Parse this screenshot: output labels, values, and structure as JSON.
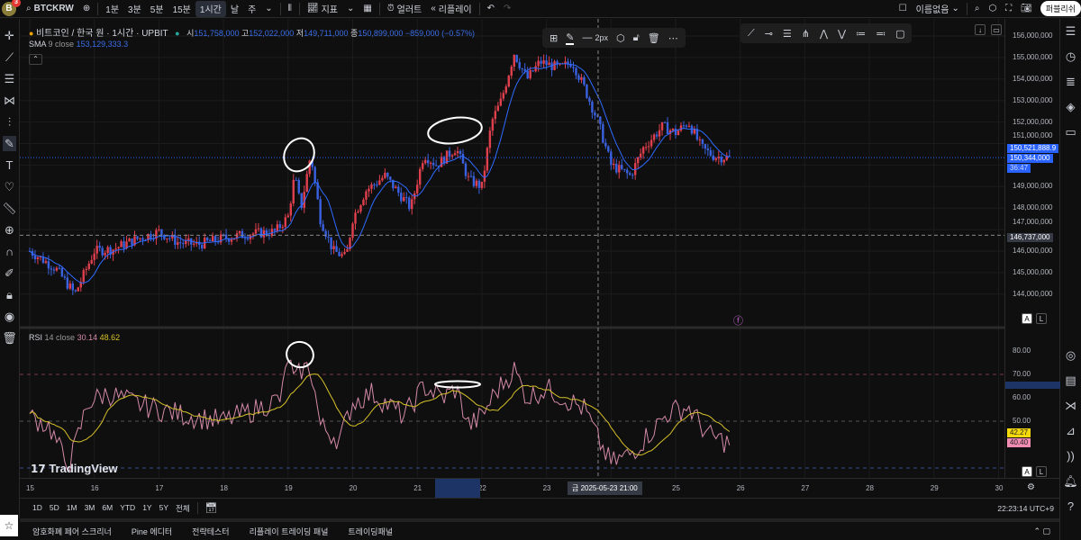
{
  "topbar": {
    "avatar": "B",
    "badge": "3",
    "symbol": "BTCKRW",
    "intervals": [
      "1분",
      "3분",
      "5분",
      "15분",
      "1시간",
      "날",
      "주"
    ],
    "active_interval": "1시간",
    "indicators": "지표",
    "alert": "얼러트",
    "replay": "리플레이",
    "layout_name": "이름없음",
    "publish": "퍼블리쉬"
  },
  "legend": {
    "title": "비트코인 / 한국 원 · 1시간 · UPBIT",
    "o_label": "시",
    "o": "151,758,000",
    "h_label": "고",
    "h": "152,022,000",
    "l_label": "저",
    "l": "149,711,000",
    "c_label": "종",
    "c": "150,899,000",
    "change": "−859,000 (−0.57%)",
    "sma_label": "SMA",
    "sma_params": "9 close",
    "sma_value": "153,129,333.3",
    "rsi_label": "RSI",
    "rsi_params": "14 close",
    "rsi_value": "30.14",
    "rsi_ma_value": "48.62"
  },
  "drawing_toolbar": {
    "width_label": "2px"
  },
  "price_axis": {
    "labels": [
      "156,000,000",
      "155,000,000",
      "154,000,000",
      "153,000,000",
      "152,000,000",
      "151,000,000",
      "149,000,000",
      "148,000,000",
      "147,000,000",
      "146,000,000",
      "145,000,000",
      "144,000,000"
    ],
    "sma_tag": "150,521,888.9",
    "last_price_tag": "150,344,000",
    "countdown": "36:47",
    "crosshair_tag": "146,737,000"
  },
  "rsi_axis": {
    "labels": [
      "80.00",
      "70.00",
      "60.00",
      "50.00"
    ],
    "rsi_ma_tag": "42.27",
    "rsi_tag": "40.40"
  },
  "time_axis": {
    "labels": [
      "15",
      "16",
      "17",
      "18",
      "19",
      "20",
      "21",
      "22",
      "23",
      "25",
      "26",
      "27",
      "28",
      "29",
      "30"
    ],
    "crosshair_label": "금 2025-05-23   21:00"
  },
  "range_bar": {
    "ranges": [
      "1D",
      "5D",
      "1M",
      "3M",
      "6M",
      "YTD",
      "1Y",
      "5Y",
      "전체"
    ],
    "clock": "22:23:14 UTC+9"
  },
  "bottom_tabs": [
    "암호화폐 페어 스크리너",
    "Pine 에디터",
    "전략테스터",
    "리플레이 트레이딩 패널",
    "트레이딩패널"
  ],
  "watermark": "TradingView",
  "colors": {
    "up": "#e0404e",
    "down": "#3a62e0",
    "sma": "#2f6bff",
    "rsi": "#d48aa8",
    "rsi_ma": "#d6c12a",
    "accent": "#2962ff"
  },
  "chart_data": {
    "type": "candlestick",
    "x_unit": "day of May 2025",
    "ylim": [
      143500000,
      156400000
    ],
    "close_path": [
      [
        15.0,
        146.0
      ],
      [
        15.4,
        145.2
      ],
      [
        15.7,
        144.0
      ],
      [
        16.0,
        146.0
      ],
      [
        16.3,
        146.1
      ],
      [
        16.6,
        146.5
      ],
      [
        17.0,
        146.9
      ],
      [
        17.3,
        146.4
      ],
      [
        17.6,
        146.3
      ],
      [
        18.0,
        146.6
      ],
      [
        18.4,
        146.8
      ],
      [
        18.8,
        146.9
      ],
      [
        19.0,
        147.6
      ],
      [
        19.1,
        149.5
      ],
      [
        19.2,
        148.0
      ],
      [
        19.35,
        150.5
      ],
      [
        19.5,
        147.5
      ],
      [
        19.7,
        146.0
      ],
      [
        19.9,
        145.7
      ],
      [
        20.0,
        147.5
      ],
      [
        20.2,
        148.8
      ],
      [
        20.5,
        149.5
      ],
      [
        20.9,
        148.0
      ],
      [
        21.1,
        150.5
      ],
      [
        21.3,
        150.0
      ],
      [
        21.6,
        150.8
      ],
      [
        21.8,
        149.3
      ],
      [
        22.0,
        149.0
      ],
      [
        22.15,
        152.0
      ],
      [
        22.3,
        153.0
      ],
      [
        22.5,
        155.2
      ],
      [
        22.7,
        154.0
      ],
      [
        22.9,
        154.8
      ],
      [
        23.2,
        154.5
      ],
      [
        23.4,
        154.8
      ],
      [
        23.6,
        153.5
      ],
      [
        23.8,
        152.0
      ],
      [
        24.0,
        150.0
      ],
      [
        24.3,
        149.5
      ],
      [
        24.5,
        150.8
      ],
      [
        24.8,
        151.8
      ],
      [
        25.0,
        151.5
      ],
      [
        25.2,
        152.0
      ],
      [
        25.4,
        150.8
      ],
      [
        25.6,
        150.4
      ],
      [
        25.85,
        150.34
      ]
    ],
    "rsi_path": [
      [
        15.0,
        52
      ],
      [
        15.3,
        48
      ],
      [
        15.6,
        30
      ],
      [
        15.9,
        58
      ],
      [
        16.2,
        62
      ],
      [
        16.6,
        58
      ],
      [
        17.0,
        55
      ],
      [
        17.5,
        52
      ],
      [
        18.0,
        50
      ],
      [
        18.5,
        55
      ],
      [
        18.9,
        60
      ],
      [
        19.0,
        78
      ],
      [
        19.1,
        66
      ],
      [
        19.2,
        72
      ],
      [
        19.35,
        73
      ],
      [
        19.5,
        48
      ],
      [
        19.8,
        42
      ],
      [
        20.0,
        58
      ],
      [
        20.3,
        62
      ],
      [
        20.8,
        52
      ],
      [
        21.1,
        65
      ],
      [
        21.4,
        60
      ],
      [
        21.6,
        64
      ],
      [
        21.8,
        48
      ],
      [
        22.0,
        52
      ],
      [
        22.2,
        62
      ],
      [
        22.5,
        72
      ],
      [
        22.7,
        60
      ],
      [
        23.0,
        64
      ],
      [
        23.4,
        58
      ],
      [
        23.6,
        55
      ],
      [
        23.8,
        42
      ],
      [
        24.0,
        32
      ],
      [
        24.3,
        36
      ],
      [
        24.6,
        45
      ],
      [
        24.9,
        54
      ],
      [
        25.2,
        56
      ],
      [
        25.5,
        44
      ],
      [
        25.85,
        40.4
      ]
    ],
    "rsi_levels": [
      70,
      50,
      30
    ],
    "rsi_ylim": [
      27,
      84
    ]
  }
}
